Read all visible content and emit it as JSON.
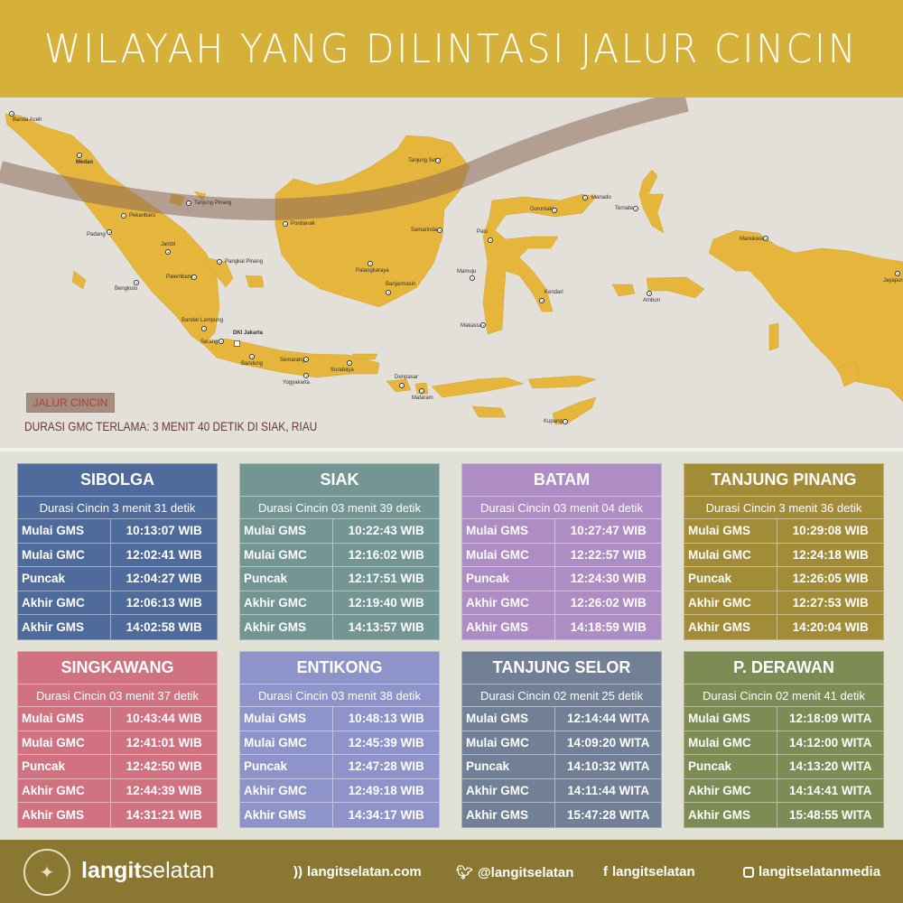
{
  "title": "WILAYAH YANG DILINTASI JALUR CINCIN",
  "map": {
    "legend_label": "JALUR CINCIN",
    "note": "DURASI GMC TERLAMA: 3 MENIT 40 DETIK DI SIAK, RIAU",
    "colors": {
      "land": "#e5b53c",
      "sea": "#e3dfd9",
      "path": "#a48c7e",
      "capital_marker": "#d0403a"
    },
    "cities": [
      "Banda Aceh",
      "Medan",
      "Tanjung Pinang",
      "Pekanbaru",
      "Padang",
      "Jambi",
      "Pangkal Pinang",
      "Palembang",
      "Bengkulu",
      "Bandar Lampung",
      "Serang",
      "DKI Jakarta",
      "Bandung",
      "Semarang",
      "Yogyakarta",
      "Surabaya",
      "Denpasar",
      "Mataram",
      "Pontianak",
      "Palangkaraya",
      "Banjarmasin",
      "Samarinda",
      "Tanjung Selor",
      "Manado",
      "Gorontalo",
      "Palu",
      "Mamuju",
      "Makassar",
      "Kendari",
      "Ternate",
      "Ambon",
      "Manokwari",
      "Jayapura",
      "Kupang"
    ]
  },
  "row_labels": [
    "Mulai GMS",
    "Mulai GMC",
    "Puncak",
    "Akhir GMC",
    "Akhir GMS"
  ],
  "locations": [
    {
      "name": "SIBOLGA",
      "duration": "Durasi Cincin 3 menit 31 detik",
      "color": "#4f6b9b",
      "times": [
        "10:13:07 WIB",
        "12:02:41 WIB",
        "12:04:27 WIB",
        "12:06:13  WIB",
        "14:02:58 WIB"
      ]
    },
    {
      "name": "SIAK",
      "duration": "Durasi Cincin 03 menit 39 detik",
      "color": "#739594",
      "times": [
        "10:22:43 WIB",
        "12:16:02 WIB",
        "12:17:51 WIB",
        "12:19:40 WIB",
        "14:13:57 WIB"
      ]
    },
    {
      "name": "BATAM",
      "duration": "Durasi Cincin 03 menit 04 detik",
      "color": "#ad8dc4",
      "times": [
        "10:27:47 WIB",
        "12:22:57 WIB",
        "12:24:30 WIB",
        "12:26:02 WIB",
        "14:18:59 WIB"
      ]
    },
    {
      "name": "TANJUNG PINANG",
      "duration": "Durasi Cincin 3 menit 36 detik",
      "color": "#a38c38",
      "times": [
        "10:29:08 WIB",
        "12:24:18 WIB",
        "12:26:05 WIB",
        "12:27:53 WIB",
        "14:20:04 WIB"
      ]
    },
    {
      "name": "SINGKAWANG",
      "duration": "Durasi Cincin 03 menit 37 detik",
      "color": "#d07280",
      "times": [
        "10:43:44 WIB",
        "12:41:01 WIB",
        "12:42:50 WIB",
        "12:44:39 WIB",
        "14:31:21 WIB"
      ]
    },
    {
      "name": "ENTIKONG",
      "duration": "Durasi Cincin 03 menit 38 detik",
      "color": "#8e93c9",
      "times": [
        "10:48:13 WIB",
        "12:45:39 WIB",
        "12:47:28 WIB",
        "12:49:18 WIB",
        "14:34:17 WIB"
      ]
    },
    {
      "name": "TANJUNG SELOR",
      "duration": "Durasi Cincin 02 menit 25 detik",
      "color": "#718096",
      "times": [
        "12:14:44 WITA",
        "14:09:20 WITA",
        "14:10:32 WITA",
        "14:11:44 WITA",
        "15:47:28 WITA"
      ]
    },
    {
      "name": "P. DERAWAN",
      "duration": "Durasi Cincin 02 menit 41 detik",
      "color": "#7d8b55",
      "times": [
        "12:18:09 WITA",
        "14:12:00 WITA",
        "14:13:20 WITA",
        "14:14:41 WITA",
        "15:48:55 WITA"
      ]
    }
  ],
  "footer": {
    "logo_text": "LANGITSELATAN",
    "brand_bold": "langit",
    "brand_light": "selatan",
    "links": [
      {
        "icon": "rss-icon",
        "text": "langitselatan.com"
      },
      {
        "icon": "twitter-icon",
        "text": "@langitselatan"
      },
      {
        "icon": "facebook-icon",
        "text": "langitselatan"
      },
      {
        "icon": "instagram-icon",
        "text": "langitselatanmedia"
      }
    ]
  }
}
